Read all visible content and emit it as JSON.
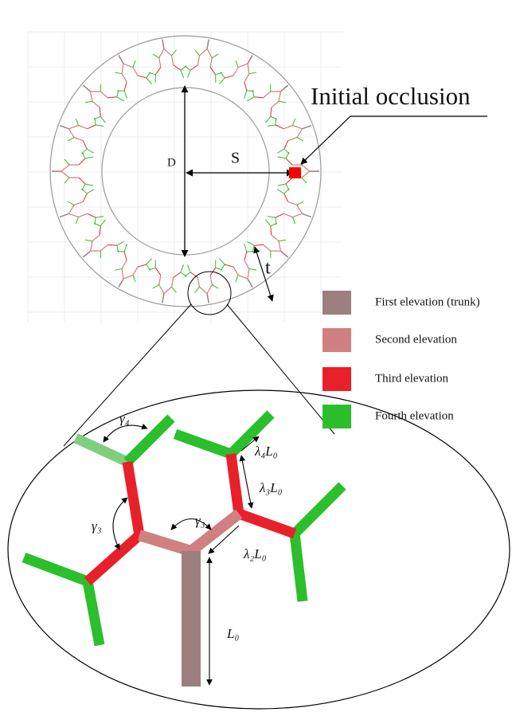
{
  "diagram": {
    "ring_labels": {
      "diameter": "D",
      "spacing": "S",
      "thickness": "t",
      "occlusion": "Initial occlusion"
    },
    "legend": [
      {
        "label": "First elevation (trunk)",
        "color": "#9c7f7f"
      },
      {
        "label": "Second elevation",
        "color": "#d08080"
      },
      {
        "label": "Third elevation",
        "color": "#e8202a"
      },
      {
        "label": "Fourth elevation",
        "color": "#2bbf2b"
      }
    ],
    "zoom_labels": {
      "gamma_top_left": "γ₄",
      "gamma_middle": "γ₃",
      "gamma_left": "γ₃",
      "lambda4": "λ₄L₀",
      "lambda3": "λ₃L₀",
      "lambda2": "λ₂L₀",
      "trunk": "L₀"
    }
  }
}
